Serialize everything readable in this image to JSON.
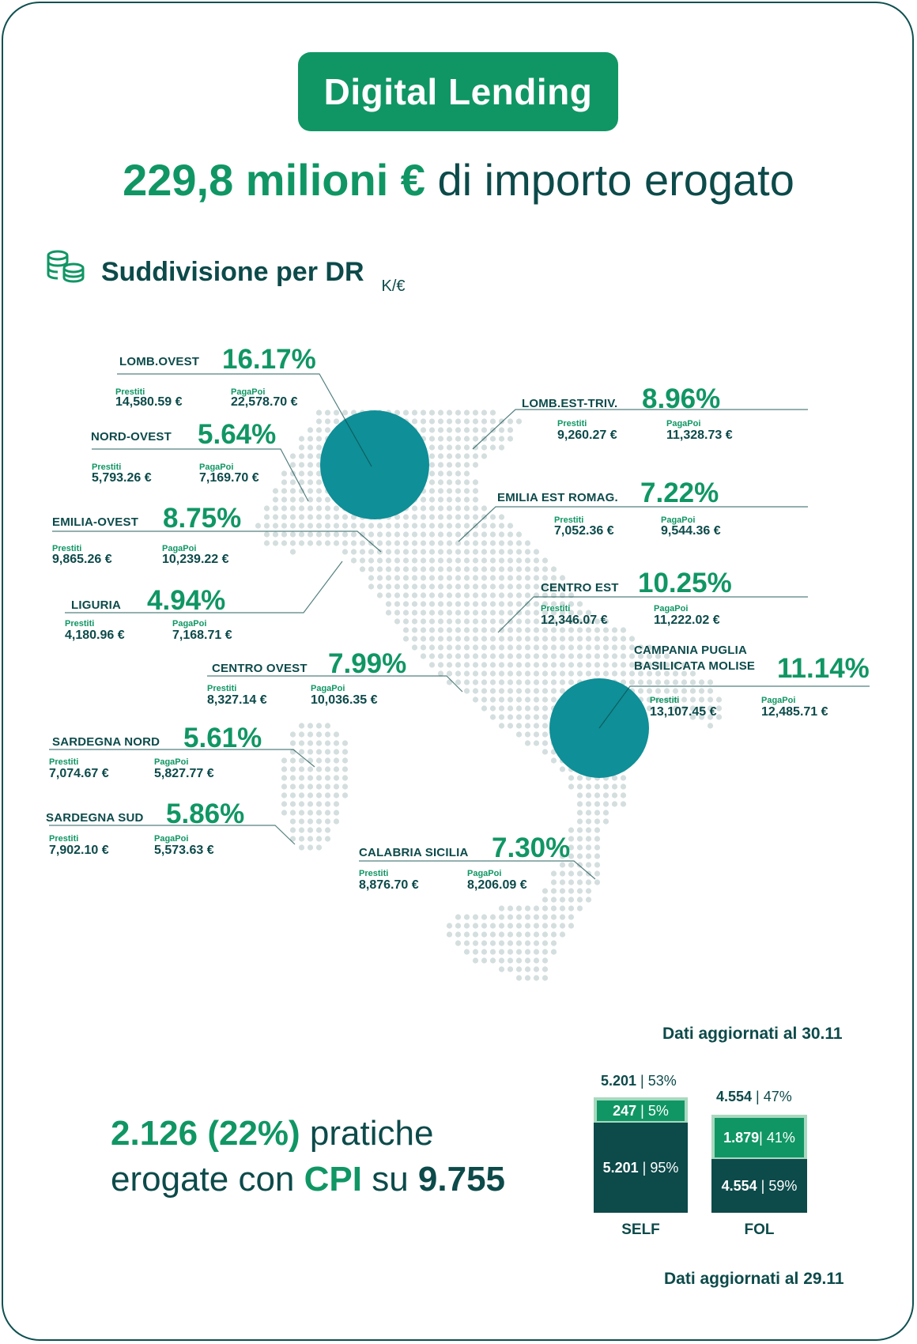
{
  "header": {
    "title": "Digital Lending",
    "headline_value": "229,8 milioni €",
    "headline_text": " di importo erogato"
  },
  "section": {
    "icon": "coins-icon",
    "title": "Suddivisione per DR",
    "unit": "K/€"
  },
  "labels": {
    "prestiti": "Prestiti",
    "pagapoi": "PagaPoi"
  },
  "regions": [
    {
      "name": "LOMB.OVEST",
      "pct": "16.17%",
      "prestiti": "14,580.59 €",
      "pagapoi": "22,578.70 €"
    },
    {
      "name": "NORD-OVEST",
      "pct": "5.64%",
      "prestiti": "5,793.26 €",
      "pagapoi": "7,169.70 €"
    },
    {
      "name": "EMILIA-OVEST",
      "pct": "8.75%",
      "prestiti": "9,865.26 €",
      "pagapoi": "10,239.22 €"
    },
    {
      "name": "LIGURIA",
      "pct": "4.94%",
      "prestiti": "4,180.96 €",
      "pagapoi": "7,168.71 €"
    },
    {
      "name": "CENTRO OVEST",
      "pct": "7.99%",
      "prestiti": "8,327.14 €",
      "pagapoi": "10,036.35 €"
    },
    {
      "name": "SARDEGNA NORD",
      "pct": "5.61%",
      "prestiti": "7,074.67 €",
      "pagapoi": "5,827.77 €"
    },
    {
      "name": "SARDEGNA SUD",
      "pct": "5.86%",
      "prestiti": "7,902.10 €",
      "pagapoi": "5,573.63 €"
    },
    {
      "name": "LOMB.EST-TRIV.",
      "pct": "8.96%",
      "prestiti": "9,260.27 €",
      "pagapoi": "11,328.73 €"
    },
    {
      "name": "EMILIA EST ROMAG.",
      "pct": "7.22%",
      "prestiti": "7,052.36 €",
      "pagapoi": "9,544.36 €"
    },
    {
      "name": "CENTRO EST",
      "pct": "10.25%",
      "prestiti": "12,346.07 €",
      "pagapoi": "11,222.02 €"
    },
    {
      "name": "CAMPANIA PUGLIA\nBASILICATA MOLISE",
      "pct": "11.14%",
      "prestiti": "13,107.45 €",
      "pagapoi": "12,485.71 €"
    },
    {
      "name": "CALABRIA SICILIA",
      "pct": "7.30%",
      "prestiti": "8,876.70 €",
      "pagapoi": "8,206.09 €"
    }
  ],
  "notes": {
    "update_1": "Dati aggiornati al 30.11",
    "update_2": "Dati aggiornati al 29.11"
  },
  "cpi": {
    "count": "2.126 (22%)",
    "text1": " pratiche",
    "text2": "erogate con ",
    "cpi": "CPI",
    "text3": " su ",
    "total": "9.755"
  },
  "bars": [
    {
      "name": "SELF",
      "total_value": "5.201",
      "total_pct": "53%",
      "cpi_value": "247",
      "cpi_pct": "5%",
      "cpi_fraction": 0.05,
      "rest_value": "5.201",
      "rest_pct": "95%",
      "rest_fraction": 0.95
    },
    {
      "name": "FOL",
      "total_value": "4.554",
      "total_pct": "47%",
      "cpi_value": "1.879",
      "cpi_pct": "41%",
      "cpi_fraction": 0.41,
      "rest_value": "4.554",
      "rest_pct": "59%",
      "rest_fraction": 0.59
    }
  ],
  "colors": {
    "brand_green": "#109664",
    "dark_teal": "#0d4a4a",
    "bubble_teal": "#0f8f97",
    "map_dots": "#d4dede",
    "light_green": "#a8d9bf"
  }
}
